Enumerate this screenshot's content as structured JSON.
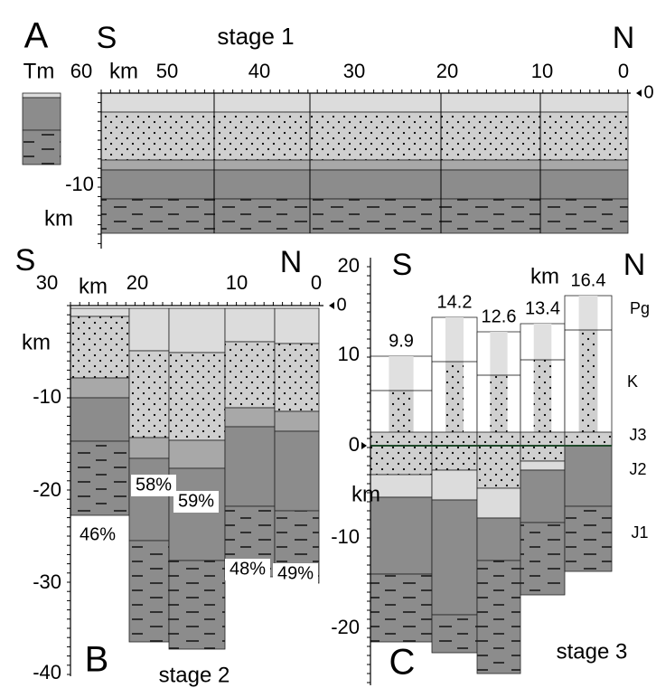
{
  "panel_a": {
    "label": "A",
    "south": "S",
    "north": "N",
    "title": "stage 1",
    "tm_label": "Tm",
    "x_unit": "km",
    "x_ticks": [
      "60",
      "50",
      "40",
      "30",
      "20",
      "10",
      "0"
    ],
    "surface_tick": "0",
    "y_ticks": [
      "-10"
    ],
    "y_unit": "km"
  },
  "panel_b": {
    "label": "B",
    "south": "S",
    "north": "N",
    "title": "stage 2",
    "x_unit": "km",
    "x_ticks": [
      "30",
      "20",
      "10",
      "0"
    ],
    "surface_tick": "0",
    "y_unit": "km",
    "y_ticks": [
      "-10",
      "-20",
      "-30",
      "-40"
    ],
    "percentages": [
      "46%",
      "58%",
      "59%",
      "48%",
      "49%"
    ]
  },
  "panel_c": {
    "label": "C",
    "south": "S",
    "north": "N",
    "title": "stage 3",
    "x_unit": "km",
    "y_ticks": [
      "20",
      "10",
      "0",
      "-10",
      "-20"
    ],
    "y_unit": "km",
    "column_heights": [
      "9.9",
      "14.2",
      "12.6",
      "13.4",
      "16.4"
    ],
    "layers": [
      "Pg",
      "K",
      "J3",
      "J2",
      "J1"
    ]
  }
}
